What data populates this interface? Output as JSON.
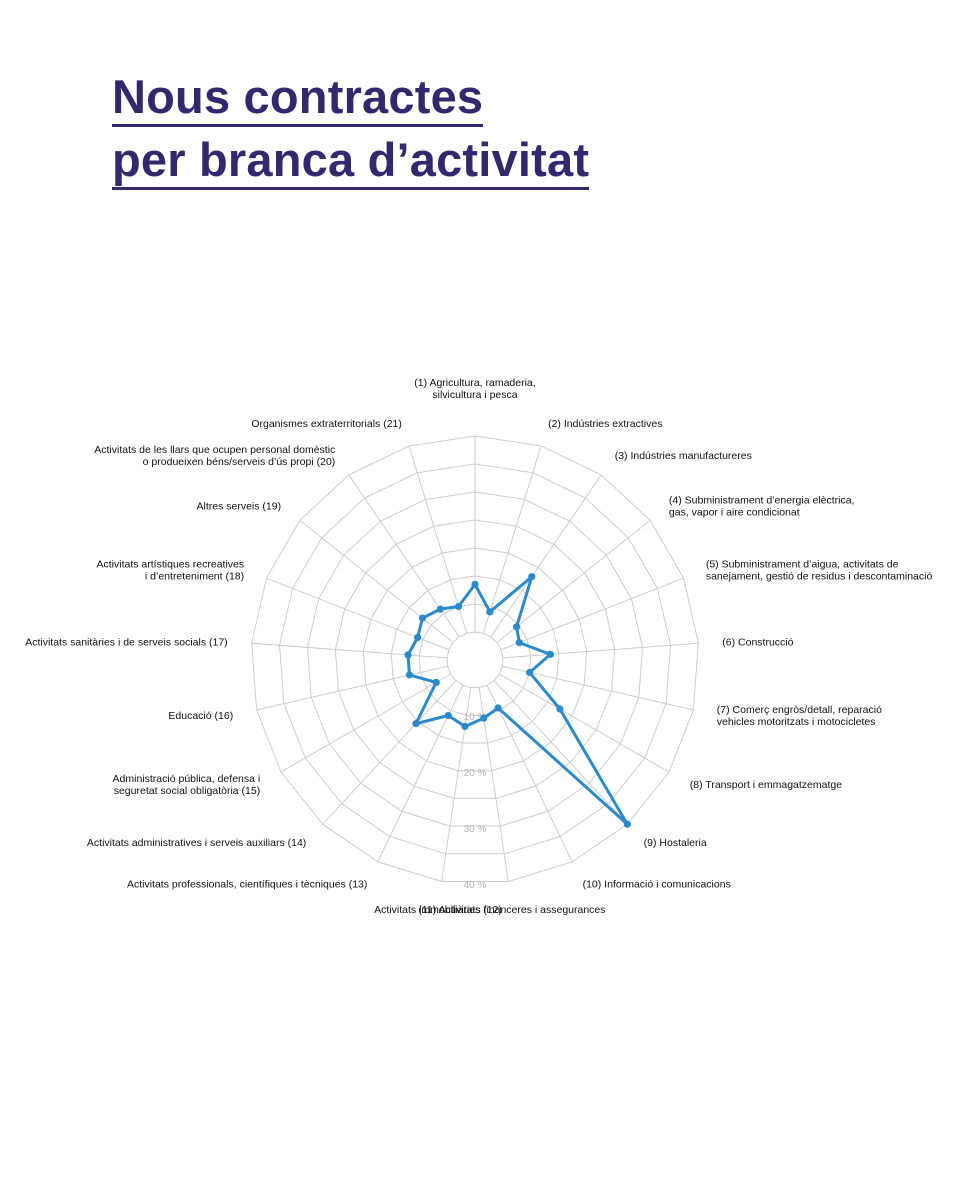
{
  "title": {
    "line1": "Nous contractes",
    "line2": "per branca d’activitat"
  },
  "colors": {
    "title": "#33286e",
    "series": "#2b8acb",
    "grid": "#cccccc",
    "tick": "#b3b3b3"
  },
  "chart_data": {
    "type": "radar",
    "title": "Nous contractes per branca d’activitat",
    "rlim": [
      0,
      40
    ],
    "ticks": [
      {
        "value": 10,
        "label": "10 %"
      },
      {
        "value": 20,
        "label": "20 %"
      },
      {
        "value": 30,
        "label": "30 %"
      },
      {
        "value": 40,
        "label": "40 %"
      }
    ],
    "grid": true,
    "categories": [
      [
        "(1) Agricultura, ramaderia,",
        "silvicultura i pesca"
      ],
      [
        "(2) Indústries extractives"
      ],
      [
        "(3) Indústries manufactureres"
      ],
      [
        "(4) Subministrament d’energia elèctrica,",
        "gas, vapor i aire condicionat"
      ],
      [
        "(5) Subministrament d’aigua, activitats de",
        "sanejament, gestió de residus i descontaminació"
      ],
      [
        "(6) Construcció"
      ],
      [
        "(7) Comerç engròs/detall, reparació",
        "vehicles motoritzats i motocicletes"
      ],
      [
        "(8) Transport i emmagatzematge"
      ],
      [
        "(9) Hostaleria"
      ],
      [
        "(10) Informació i comunicacions"
      ],
      [
        "(11) Activitats financeres i assegurances"
      ],
      [
        "Activitats immobiliàries (12)"
      ],
      [
        "Activitats professionals, científiques i tècniques (13)"
      ],
      [
        "Activitats administratives i serveis auxiliars (14)"
      ],
      [
        "Administració pública, defensa i",
        "seguretat social obligatòria (15)"
      ],
      [
        "Educació (16)"
      ],
      [
        "Activitats sanitàries i de serveis socials (17)"
      ],
      [
        "Activitats artístiques recreatives",
        "i d’entreteniment (18)"
      ],
      [
        "Altres serveis (19)"
      ],
      [
        "Activitats de les llars que ocupen personal domèstic",
        "o produeixen béns/serveis d’ús propi (20)"
      ],
      [
        "Organismes extraterritorials (21)"
      ]
    ],
    "series": [
      {
        "values": [
          13.5,
          9,
          18,
          9.5,
          8.5,
          13.5,
          10,
          17.5,
          40,
          9.5,
          10.5,
          12,
          11,
          15.5,
          8,
          12,
          12,
          11,
          12,
          11,
          10
        ]
      }
    ]
  }
}
